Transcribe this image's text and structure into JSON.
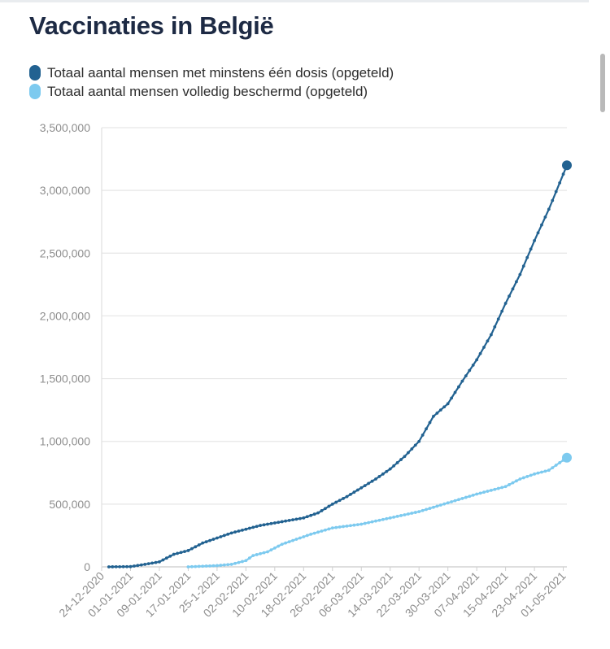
{
  "title": "Vaccinaties in België",
  "colors": {
    "dose1": "#226291",
    "full": "#7dcaef",
    "grid": "#e6e6e6",
    "axis_text": "#8e8e8e"
  },
  "chart_data": {
    "type": "line",
    "title": "Vaccinaties in België",
    "xlabel": "",
    "ylabel": "",
    "ylim": [
      0,
      3500000
    ],
    "y_ticks": [
      0,
      500000,
      1000000,
      1500000,
      2000000,
      2500000,
      3000000,
      3500000
    ],
    "y_tick_labels": [
      "0",
      "500,000",
      "1,000,000",
      "1,500,000",
      "2,000,000",
      "2,500,000",
      "3,000,000",
      "3,500,000"
    ],
    "x_tick_labels": [
      "24-12-2020",
      "01-01-2021",
      "09-01-2021",
      "17-01-2021",
      "25-1-2021",
      "02-02-2021",
      "10-02-2021",
      "18-02-2021",
      "26-02-2021",
      "06-03-2021",
      "14-03-2021",
      "22-03-2021",
      "30-03-2021",
      "07-04-2021",
      "15-04-2021",
      "23-04-2021",
      "01-05-2021"
    ],
    "x_tick_dates": [
      "2020-12-24",
      "2021-01-01",
      "2021-01-09",
      "2021-01-17",
      "2021-01-25",
      "2021-02-02",
      "2021-02-10",
      "2021-02-18",
      "2021-02-26",
      "2021-03-06",
      "2021-03-14",
      "2021-03-22",
      "2021-03-30",
      "2021-04-07",
      "2021-04-15",
      "2021-04-23",
      "2021-05-01"
    ],
    "x_range": [
      "2020-12-24",
      "2021-05-02"
    ],
    "grid": true,
    "legend_position": "top-left",
    "series": [
      {
        "name": "Totaal aantal mensen met minstens één dosis (opgeteld)",
        "color": "#226291",
        "points": [
          [
            "2020-12-26",
            0
          ],
          [
            "2021-01-01",
            2000
          ],
          [
            "2021-01-05",
            20000
          ],
          [
            "2021-01-09",
            40000
          ],
          [
            "2021-01-13",
            100000
          ],
          [
            "2021-01-17",
            130000
          ],
          [
            "2021-01-21",
            190000
          ],
          [
            "2021-01-25",
            230000
          ],
          [
            "2021-01-29",
            270000
          ],
          [
            "2021-02-02",
            300000
          ],
          [
            "2021-02-06",
            330000
          ],
          [
            "2021-02-10",
            350000
          ],
          [
            "2021-02-14",
            370000
          ],
          [
            "2021-02-18",
            390000
          ],
          [
            "2021-02-22",
            430000
          ],
          [
            "2021-02-26",
            500000
          ],
          [
            "2021-03-02",
            560000
          ],
          [
            "2021-03-06",
            630000
          ],
          [
            "2021-03-10",
            700000
          ],
          [
            "2021-03-14",
            780000
          ],
          [
            "2021-03-18",
            880000
          ],
          [
            "2021-03-22",
            1000000
          ],
          [
            "2021-03-26",
            1200000
          ],
          [
            "2021-03-30",
            1300000
          ],
          [
            "2021-04-03",
            1480000
          ],
          [
            "2021-04-07",
            1650000
          ],
          [
            "2021-04-11",
            1850000
          ],
          [
            "2021-04-15",
            2100000
          ],
          [
            "2021-04-19",
            2330000
          ],
          [
            "2021-04-23",
            2600000
          ],
          [
            "2021-04-27",
            2850000
          ],
          [
            "2021-05-02",
            3200000
          ]
        ]
      },
      {
        "name": "Totaal aantal mensen volledig beschermd (opgeteld)",
        "color": "#7dcaef",
        "points": [
          [
            "2021-01-17",
            0
          ],
          [
            "2021-01-25",
            10000
          ],
          [
            "2021-01-29",
            20000
          ],
          [
            "2021-02-02",
            50000
          ],
          [
            "2021-02-04",
            90000
          ],
          [
            "2021-02-08",
            120000
          ],
          [
            "2021-02-12",
            180000
          ],
          [
            "2021-02-16",
            220000
          ],
          [
            "2021-02-20",
            260000
          ],
          [
            "2021-02-26",
            310000
          ],
          [
            "2021-03-06",
            340000
          ],
          [
            "2021-03-14",
            390000
          ],
          [
            "2021-03-22",
            440000
          ],
          [
            "2021-03-30",
            510000
          ],
          [
            "2021-04-07",
            580000
          ],
          [
            "2021-04-15",
            640000
          ],
          [
            "2021-04-19",
            700000
          ],
          [
            "2021-04-23",
            740000
          ],
          [
            "2021-04-27",
            770000
          ],
          [
            "2021-05-02",
            870000
          ]
        ]
      }
    ]
  }
}
